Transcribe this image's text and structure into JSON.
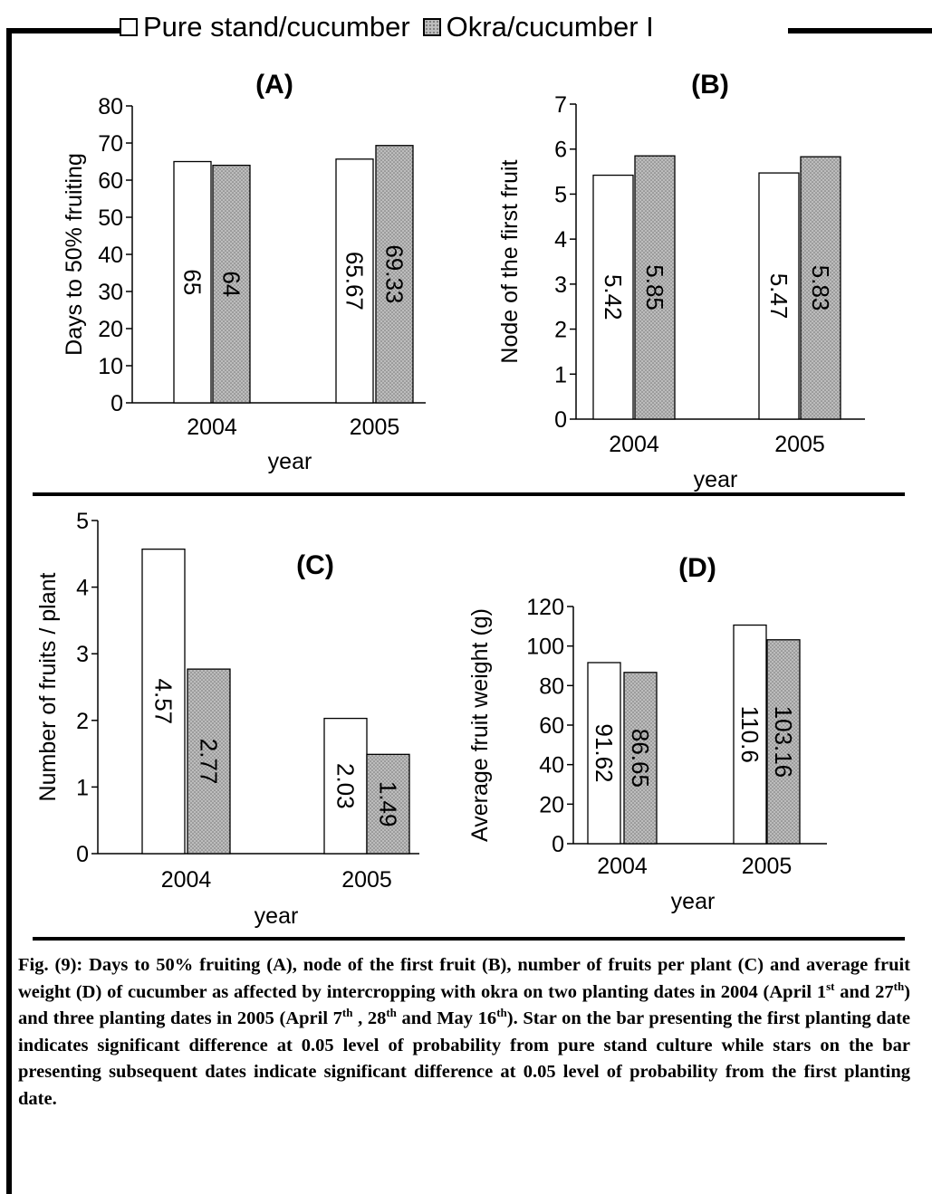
{
  "legend": {
    "pure_label": "Pure stand/cucumber",
    "okra_label": "Okra/cucumber I"
  },
  "colors": {
    "pure_fill": "#ffffff",
    "okra_fill": "#bdbdbd",
    "okra_dots": "#6e6e6e",
    "axis": "#000000"
  },
  "chart_data": [
    {
      "id": "A",
      "type": "bar",
      "title": "(A)",
      "xlabel": "year",
      "ylabel": "Days to 50% fruiting",
      "categories": [
        "2004",
        "2005"
      ],
      "ylim": [
        0,
        80
      ],
      "yticks": [
        0,
        10,
        20,
        30,
        40,
        50,
        60,
        70,
        80
      ],
      "series": [
        {
          "name": "Pure stand/cucumber",
          "values": [
            65,
            65.67
          ],
          "labels": [
            "65",
            "65.67"
          ]
        },
        {
          "name": "Okra/cucumber I",
          "values": [
            64,
            69.33
          ],
          "labels": [
            "64",
            "69.33"
          ]
        }
      ]
    },
    {
      "id": "B",
      "type": "bar",
      "title": "(B)",
      "xlabel": "year",
      "ylabel": "Node of the first fruit",
      "categories": [
        "2004",
        "2005"
      ],
      "ylim": [
        0,
        7
      ],
      "yticks": [
        0,
        1,
        2,
        3,
        4,
        5,
        6,
        7
      ],
      "series": [
        {
          "name": "Pure stand/cucumber",
          "values": [
            5.42,
            5.47
          ],
          "labels": [
            "5.42",
            "5.47"
          ]
        },
        {
          "name": "Okra/cucumber I",
          "values": [
            5.85,
            5.83
          ],
          "labels": [
            "5.85",
            "5.83"
          ]
        }
      ]
    },
    {
      "id": "C",
      "type": "bar",
      "title": "(C)",
      "xlabel": "year",
      "ylabel": "Number of fruits / plant",
      "categories": [
        "2004",
        "2005"
      ],
      "ylim": [
        0,
        5
      ],
      "yticks": [
        0,
        1,
        2,
        3,
        4,
        5
      ],
      "series": [
        {
          "name": "Pure stand/cucumber",
          "values": [
            4.57,
            2.03
          ],
          "labels": [
            "4.57",
            "2.03"
          ]
        },
        {
          "name": "Okra/cucumber I",
          "values": [
            2.77,
            1.49
          ],
          "labels": [
            "2.77",
            "1.49"
          ]
        }
      ]
    },
    {
      "id": "D",
      "type": "bar",
      "title": "(D)",
      "xlabel": "year",
      "ylabel": "Average fruit weight (g)",
      "categories": [
        "2004",
        "2005"
      ],
      "ylim": [
        0,
        120
      ],
      "yticks": [
        0,
        20,
        40,
        60,
        80,
        100,
        120
      ],
      "series": [
        {
          "name": "Pure stand/cucumber",
          "values": [
            91.62,
            110.6
          ],
          "labels": [
            "91.62",
            "110.6"
          ]
        },
        {
          "name": "Okra/cucumber I",
          "values": [
            86.65,
            103.16
          ],
          "labels": [
            "86.65",
            "103.16"
          ]
        }
      ]
    }
  ],
  "caption": {
    "p1": "Fig. (9): Days to 50% fruiting (A), node of the first fruit (B), number of fruits per plant (C) and average fruit weight (D) of cucumber as affected by intercropping with okra on two planting dates in 2004 (April 1",
    "sup1": "st",
    "p2": " and 27",
    "sup2": "th",
    "p3": ") and three planting dates in 2005 (April 7",
    "sup3": "th",
    "p4": " , 28",
    "sup4": "th",
    "p5": " and May 16",
    "sup5": "th",
    "p6": "). Star on the bar presenting the first planting date indicates significant difference at 0.05 level of probability from pure stand culture while stars on the bar presenting subsequent dates indicate significant difference at 0.05 level of probability from the first planting date."
  }
}
